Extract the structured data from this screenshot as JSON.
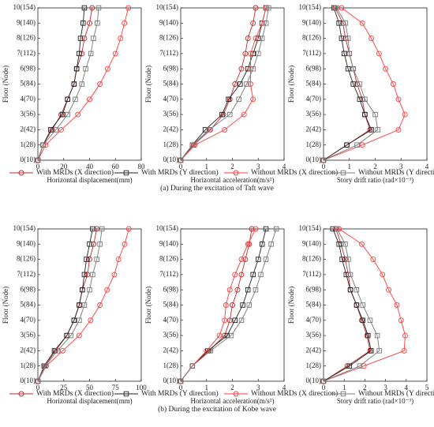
{
  "captions": [
    "(a) During the excitation of Taft wave",
    "(b) During the excitation of Kobe wave"
  ],
  "chart_data": [
    {
      "type": "line",
      "xlabel": "Horizontal displacement(mm)",
      "ylabel": "Floor (Node)",
      "categories": [
        "0(10)",
        "1(28)",
        "2(42)",
        "3(56)",
        "4(70)",
        "5(84)",
        "6(98)",
        "7(112)",
        "8(126)",
        "9(140)",
        "10(154)"
      ],
      "xlim": [
        0,
        80
      ],
      "xticks": [
        0,
        20,
        40,
        60,
        80
      ],
      "series": [
        {
          "name": "With MRDs (X direction)",
          "color": "#c62828",
          "marker": "circle",
          "values": [
            0,
            4,
            11,
            18,
            23,
            28,
            30,
            34,
            36,
            40,
            42
          ]
        },
        {
          "name": "With MRDs (Y direction)",
          "color": "#222222",
          "marker": "square",
          "values": [
            0,
            4,
            10,
            19,
            23,
            28,
            30,
            32,
            33,
            35,
            36
          ]
        },
        {
          "name": "Without MRDs (X direction)",
          "color": "#ff3b3b",
          "marker": "circle",
          "values": [
            0,
            6,
            18,
            31,
            40,
            48,
            54,
            60,
            64,
            67,
            70
          ]
        },
        {
          "name": "Without MRDs (Y direction)",
          "color": "#777777",
          "marker": "square",
          "values": [
            0,
            4,
            14,
            23,
            29,
            34,
            37,
            41,
            43,
            46,
            47
          ]
        }
      ]
    },
    {
      "type": "line",
      "xlabel": "Horizontal acceleration(m/s²)",
      "ylabel": "Floor (Node)",
      "categories": [
        "0(10)",
        "1(28)",
        "2(42)",
        "3(56)",
        "4(70)",
        "5(84)",
        "6(98)",
        "7(112)",
        "8(126)",
        "9(140)",
        "10(154)"
      ],
      "xlim": [
        0,
        4
      ],
      "xticks": [
        0,
        1,
        2,
        3,
        4
      ],
      "series": [
        {
          "name": "With MRDs (X direction)",
          "color": "#c62828",
          "marker": "circle",
          "values": [
            0,
            0.5,
            1.15,
            1.65,
            1.9,
            2.1,
            2.35,
            2.5,
            2.6,
            2.8,
            2.9
          ]
        },
        {
          "name": "With MRDs (Y direction)",
          "color": "#222222",
          "marker": "square",
          "values": [
            0,
            0.45,
            0.95,
            1.6,
            1.85,
            2.3,
            2.6,
            2.8,
            3.0,
            3.15,
            3.3
          ]
        },
        {
          "name": "Without MRDs (X direction)",
          "color": "#ff3b3b",
          "marker": "circle",
          "values": [
            0,
            0.55,
            1.7,
            2.45,
            2.8,
            2.7,
            2.7,
            2.7,
            2.9,
            3.15,
            3.3
          ]
        },
        {
          "name": "Without MRDs (Y direction)",
          "color": "#777777",
          "marker": "square",
          "values": [
            0,
            0.45,
            1.1,
            1.9,
            2.25,
            2.55,
            2.8,
            3.0,
            3.15,
            3.3,
            3.4
          ]
        }
      ]
    },
    {
      "type": "line",
      "xlabel": "Story drift ratio (rad×10⁻³)",
      "ylabel": "Floor (Node)",
      "categories": [
        "0(10)",
        "1(28)",
        "2(42)",
        "3(56)",
        "4(70)",
        "5(84)",
        "6(98)",
        "7(112)",
        "8(126)",
        "9(140)",
        "10(154)"
      ],
      "xlim": [
        0,
        4
      ],
      "xticks": [
        0,
        1,
        2,
        3,
        4
      ],
      "series": [
        {
          "name": "With MRDs (X direction)",
          "color": "#c62828",
          "marker": "circle",
          "values": [
            0,
            0.9,
            1.8,
            1.6,
            1.5,
            1.3,
            1.15,
            1.0,
            0.85,
            0.75,
            0.45
          ]
        },
        {
          "name": "With MRDs (Y direction)",
          "color": "#222222",
          "marker": "square",
          "values": [
            0,
            0.9,
            1.85,
            1.6,
            1.4,
            1.15,
            0.95,
            0.8,
            0.7,
            0.6,
            0.4
          ]
        },
        {
          "name": "Without MRDs (X direction)",
          "color": "#ff3b3b",
          "marker": "circle",
          "values": [
            0,
            1.5,
            2.9,
            3.15,
            2.9,
            2.7,
            2.4,
            2.15,
            1.85,
            1.5,
            0.7
          ]
        },
        {
          "name": "Without MRDs (Y direction)",
          "color": "#777777",
          "marker": "square",
          "values": [
            0,
            1.3,
            2.1,
            2.0,
            1.6,
            1.4,
            1.15,
            1.0,
            0.95,
            0.85,
            0.5
          ]
        }
      ]
    },
    {
      "type": "line",
      "xlabel": "Horizontal displacement(mm)",
      "ylabel": "Floor (Node)",
      "categories": [
        "0(10)",
        "1(28)",
        "2(42)",
        "3(56)",
        "4(70)",
        "5(84)",
        "6(98)",
        "7(112)",
        "8(126)",
        "9(140)",
        "10(154)"
      ],
      "xlim": [
        0,
        100
      ],
      "xticks": [
        0,
        25,
        50,
        75,
        100
      ],
      "series": [
        {
          "name": "With MRDs (X direction)",
          "color": "#c62828",
          "marker": "circle",
          "values": [
            0,
            7,
            17,
            28,
            35,
            40,
            43,
            48,
            50,
            54,
            57
          ]
        },
        {
          "name": "With MRDs (Y direction)",
          "color": "#222222",
          "marker": "square",
          "values": [
            0,
            6,
            16,
            28,
            35,
            40,
            43,
            45,
            47,
            50,
            53
          ]
        },
        {
          "name": "Without MRDs (X direction)",
          "color": "#ff3b3b",
          "marker": "circle",
          "values": [
            0,
            8,
            24,
            40,
            51,
            60,
            67,
            74,
            78,
            84,
            88
          ]
        },
        {
          "name": "Without MRDs (Y direction)",
          "color": "#777777",
          "marker": "square",
          "values": [
            0,
            7,
            19,
            32,
            40,
            45,
            50,
            53,
            57,
            60,
            62
          ]
        }
      ]
    },
    {
      "type": "line",
      "xlabel": "Horizontal acceleration(m/s²)",
      "ylabel": "Floor (Node)",
      "categories": [
        "0(10)",
        "1(28)",
        "2(42)",
        "3(56)",
        "4(70)",
        "5(84)",
        "6(98)",
        "7(112)",
        "8(126)",
        "9(140)",
        "10(154)"
      ],
      "xlim": [
        0,
        4
      ],
      "xticks": [
        0,
        1,
        2,
        3,
        4
      ],
      "series": [
        {
          "name": "With MRDs (X direction)",
          "color": "#c62828",
          "marker": "circle",
          "values": [
            0,
            0.45,
            1.1,
            1.7,
            1.9,
            2.0,
            2.2,
            2.35,
            2.5,
            2.65,
            2.75
          ]
        },
        {
          "name": "With MRDs (Y direction)",
          "color": "#222222",
          "marker": "square",
          "values": [
            0,
            0.45,
            1.05,
            1.8,
            2.1,
            2.4,
            2.6,
            2.8,
            3.0,
            3.15,
            3.3
          ]
        },
        {
          "name": "Without MRDs (X direction)",
          "color": "#ff3b3b",
          "marker": "circle",
          "values": [
            0,
            0.45,
            1.0,
            1.5,
            1.7,
            1.75,
            1.9,
            2.1,
            2.35,
            2.6,
            2.9
          ]
        },
        {
          "name": "Without MRDs (Y direction)",
          "color": "#777777",
          "marker": "square",
          "values": [
            0,
            0.45,
            1.15,
            1.95,
            2.35,
            2.65,
            2.9,
            3.1,
            3.3,
            3.5,
            3.7
          ]
        }
      ]
    },
    {
      "type": "line",
      "xlabel": "Story drift ratio (rad×10⁻³)",
      "ylabel": "Floor (Node)",
      "categories": [
        "0(10)",
        "1(28)",
        "2(42)",
        "3(56)",
        "4(70)",
        "5(84)",
        "6(98)",
        "7(112)",
        "8(126)",
        "9(140)",
        "10(154)"
      ],
      "xlim": [
        0,
        5
      ],
      "xticks": [
        0,
        1,
        2,
        3,
        4,
        5
      ],
      "series": [
        {
          "name": "With MRDs (X direction)",
          "color": "#c62828",
          "marker": "circle",
          "values": [
            0,
            1.15,
            2.25,
            2.1,
            1.85,
            1.6,
            1.3,
            1.2,
            1.05,
            0.85,
            0.6
          ]
        },
        {
          "name": "With MRDs (Y direction)",
          "color": "#222222",
          "marker": "square",
          "values": [
            0,
            1.25,
            2.3,
            2.15,
            1.9,
            1.6,
            1.3,
            1.1,
            0.9,
            0.75,
            0.45
          ]
        },
        {
          "name": "Without MRDs (X direction)",
          "color": "#ff3b3b",
          "marker": "circle",
          "values": [
            0,
            1.95,
            3.9,
            3.95,
            3.75,
            3.55,
            3.15,
            2.85,
            2.4,
            1.85,
            0.75
          ]
        },
        {
          "name": "Without MRDs (Y direction)",
          "color": "#777777",
          "marker": "square",
          "values": [
            0,
            1.75,
            2.7,
            2.6,
            2.25,
            1.9,
            1.6,
            1.3,
            1.2,
            1.05,
            0.65
          ]
        }
      ]
    }
  ]
}
